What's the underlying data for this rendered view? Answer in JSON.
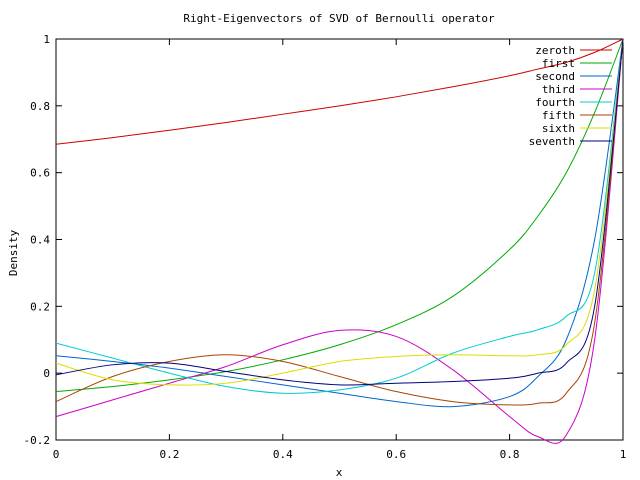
{
  "chart_data": {
    "type": "line",
    "title": "Right-Eigenvectors of SVD of Bernoulli operator",
    "xlabel": "x",
    "ylabel": "Density",
    "xlim": [
      0,
      1
    ],
    "ylim": [
      -0.2,
      1
    ],
    "xticks": [
      0,
      0.2,
      0.4,
      0.6,
      0.8,
      1
    ],
    "xtick_labels": [
      "0",
      "0.2",
      "0.4",
      "0.6",
      "0.8",
      "1"
    ],
    "yticks": [
      -0.2,
      0,
      0.2,
      0.4,
      0.6,
      0.8,
      1
    ],
    "ytick_labels": [
      "-0.2",
      "0",
      "0.2",
      "0.4",
      "0.6",
      "0.8",
      "1"
    ],
    "grid": false,
    "legend_position": "top-right",
    "x": [
      0,
      0.1,
      0.2,
      0.3,
      0.4,
      0.5,
      0.6,
      0.7,
      0.8,
      0.85,
      0.9,
      0.95,
      1.0
    ],
    "series": [
      {
        "name": "zeroth",
        "color": "#cc0000",
        "values": [
          0.685,
          0.705,
          0.727,
          0.75,
          0.775,
          0.8,
          0.827,
          0.857,
          0.89,
          0.91,
          0.93,
          0.96,
          1.0
        ]
      },
      {
        "name": "first",
        "color": "#00aa00",
        "values": [
          -0.055,
          -0.04,
          -0.02,
          0.005,
          0.04,
          0.085,
          0.145,
          0.23,
          0.37,
          0.47,
          0.6,
          0.78,
          1.0
        ]
      },
      {
        "name": "second",
        "color": "#0066cc",
        "values": [
          0.052,
          0.035,
          0.015,
          -0.01,
          -0.035,
          -0.06,
          -0.085,
          -0.1,
          -0.07,
          -0.01,
          0.1,
          0.4,
          1.0
        ]
      },
      {
        "name": "third",
        "color": "#cc00cc",
        "values": [
          -0.13,
          -0.08,
          -0.03,
          0.02,
          0.085,
          0.128,
          0.11,
          0.01,
          -0.13,
          -0.19,
          -0.185,
          0.1,
          1.0
        ]
      },
      {
        "name": "fourth",
        "color": "#00cccc",
        "values": [
          0.09,
          0.045,
          0.0,
          -0.04,
          -0.06,
          -0.05,
          -0.015,
          0.06,
          0.11,
          0.13,
          0.17,
          0.3,
          1.0
        ]
      },
      {
        "name": "fifth",
        "color": "#aa4400",
        "values": [
          -0.085,
          -0.01,
          0.035,
          0.055,
          0.035,
          -0.01,
          -0.055,
          -0.085,
          -0.095,
          -0.09,
          -0.06,
          0.15,
          1.0
        ]
      },
      {
        "name": "sixth",
        "color": "#dddd00",
        "values": [
          0.03,
          -0.02,
          -0.035,
          -0.03,
          0.0,
          0.035,
          0.05,
          0.055,
          0.052,
          0.055,
          0.085,
          0.25,
          1.0
        ]
      },
      {
        "name": "seventh",
        "color": "#000080",
        "values": [
          -0.005,
          0.025,
          0.03,
          0.005,
          -0.02,
          -0.035,
          -0.03,
          -0.025,
          -0.015,
          0.0,
          0.03,
          0.2,
          1.0
        ]
      }
    ]
  }
}
